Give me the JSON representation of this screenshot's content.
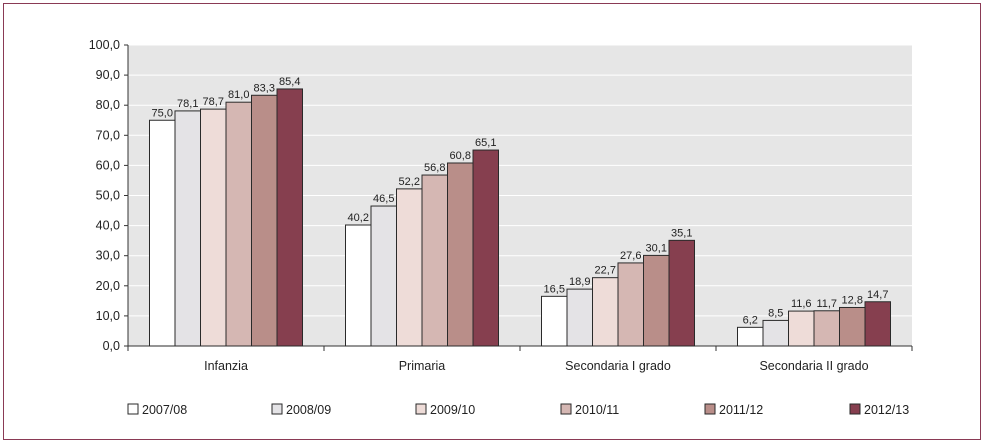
{
  "chart_data": {
    "type": "bar",
    "categories": [
      "Infanzia",
      "Primaria",
      "Secondaria I grado",
      "Secondaria II grado"
    ],
    "series": [
      {
        "name": "2007/08",
        "color": "#ffffff",
        "values": [
          75.0,
          40.2,
          16.5,
          6.2
        ]
      },
      {
        "name": "2008/09",
        "color": "#e4e3e6",
        "values": [
          78.1,
          46.5,
          18.9,
          8.5
        ]
      },
      {
        "name": "2009/10",
        "color": "#eedcd8",
        "values": [
          78.7,
          52.2,
          22.7,
          11.6
        ]
      },
      {
        "name": "2010/11",
        "color": "#d5b7b3",
        "values": [
          81.0,
          56.8,
          27.6,
          11.7
        ]
      },
      {
        "name": "2011/12",
        "color": "#b98e89",
        "values": [
          83.3,
          60.8,
          30.1,
          12.8
        ]
      },
      {
        "name": "2012/13",
        "color": "#863f4f",
        "values": [
          85.4,
          65.1,
          35.1,
          14.7
        ]
      }
    ],
    "value_labels": [
      [
        "75,0",
        "40,2",
        "16,5",
        "6,2"
      ],
      [
        "78,1",
        "46,5",
        "18,9",
        "8,5"
      ],
      [
        "78,7",
        "52,2",
        "22,7",
        "11,6"
      ],
      [
        "81,0",
        "56,8",
        "27,6",
        "11,7"
      ],
      [
        "83,3",
        "60,8",
        "30,1",
        "12,8"
      ],
      [
        "85,4",
        "65,1",
        "35,1",
        "14,7"
      ]
    ],
    "y_ticks": [
      "0,0",
      "10,0",
      "20,0",
      "30,0",
      "40,0",
      "50,0",
      "60,0",
      "70,0",
      "80,0",
      "90,0",
      "100,0"
    ],
    "ylim": [
      0,
      100
    ],
    "grid": true,
    "plot_background": "#e6e6e6",
    "frame_color": "#8a3a55",
    "legend_position": "bottom"
  }
}
